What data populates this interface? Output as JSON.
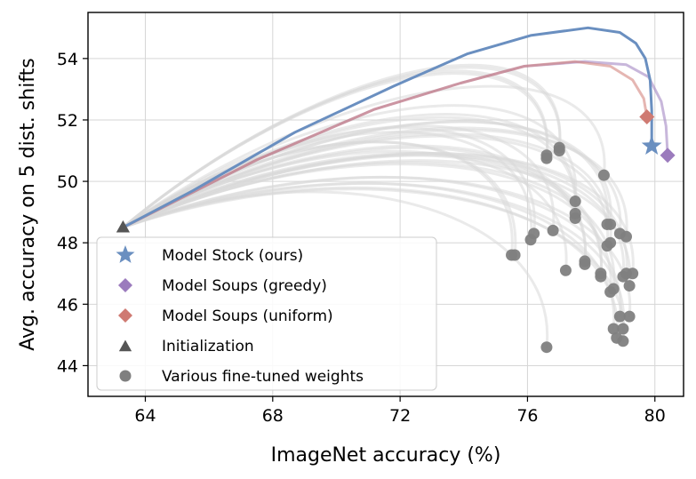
{
  "chart_data": {
    "type": "line",
    "xlabel": "ImageNet accuracy (%)",
    "ylabel": "Avg. accuracy on 5 dist. shifts",
    "xlim": [
      62.2,
      80.9
    ],
    "ylim": [
      43.0,
      55.5
    ],
    "xticks": [
      64,
      68,
      72,
      76,
      80
    ],
    "yticks": [
      44,
      46,
      48,
      50,
      52,
      54
    ],
    "grid": true,
    "legend_position": "lower-left",
    "legend": [
      {
        "label": "Model Stock (ours)",
        "marker": "star",
        "color": "#6a8fc0"
      },
      {
        "label": "Model Soups (greedy)",
        "marker": "diamond",
        "color": "#9b7bbd"
      },
      {
        "label": "Model Soups (uniform)",
        "marker": "diamond",
        "color": "#cf7a72"
      },
      {
        "label": "Initialization",
        "marker": "triangle",
        "color": "#555555"
      },
      {
        "label": "Various fine-tuned weights",
        "marker": "circle",
        "color": "#7f7f7f"
      }
    ],
    "colors": {
      "model_stock": "#6a8fc0",
      "greedy": "#9b7bbd",
      "uniform": "#cf7a72",
      "init": "#555555",
      "finetuned": "#7f7f7f",
      "interp": "#d9d9d9"
    },
    "initialization": {
      "x": 63.3,
      "y": 48.5
    },
    "model_stock_point": {
      "x": 79.9,
      "y": 51.15
    },
    "greedy_point": {
      "x": 80.4,
      "y": 50.85
    },
    "uniform_point": {
      "x": 79.75,
      "y": 52.1
    },
    "model_stock_curve": [
      [
        63.3,
        48.5
      ],
      [
        65.5,
        49.7
      ],
      [
        68.7,
        51.6
      ],
      [
        71.8,
        53.1
      ],
      [
        74.1,
        54.15
      ],
      [
        76.1,
        54.75
      ],
      [
        77.9,
        55.0
      ],
      [
        78.9,
        54.85
      ],
      [
        79.4,
        54.5
      ],
      [
        79.7,
        54.0
      ],
      [
        79.85,
        53.3
      ],
      [
        79.9,
        52.3
      ],
      [
        79.9,
        51.15
      ]
    ],
    "greedy_curve": [
      [
        63.3,
        48.5
      ],
      [
        67.5,
        50.7
      ],
      [
        71.2,
        52.35
      ],
      [
        73.9,
        53.2
      ],
      [
        75.9,
        53.75
      ],
      [
        77.8,
        53.9
      ],
      [
        79.1,
        53.8
      ],
      [
        79.8,
        53.4
      ],
      [
        80.2,
        52.6
      ],
      [
        80.35,
        51.8
      ],
      [
        80.4,
        50.85
      ]
    ],
    "uniform_curve": [
      [
        63.3,
        48.5
      ],
      [
        67.5,
        50.7
      ],
      [
        71.2,
        52.35
      ],
      [
        73.9,
        53.2
      ],
      [
        75.9,
        53.75
      ],
      [
        77.5,
        53.9
      ],
      [
        78.6,
        53.75
      ],
      [
        79.3,
        53.3
      ],
      [
        79.65,
        52.7
      ],
      [
        79.75,
        52.1
      ]
    ],
    "finetuned_points": [
      [
        76.6,
        44.6
      ],
      [
        75.5,
        47.6
      ],
      [
        75.6,
        47.6
      ],
      [
        76.1,
        48.1
      ],
      [
        76.2,
        48.3
      ],
      [
        76.8,
        48.4
      ],
      [
        76.6,
        50.75
      ],
      [
        76.6,
        50.85
      ],
      [
        77.0,
        51.0
      ],
      [
        77.0,
        51.1
      ],
      [
        77.5,
        49.35
      ],
      [
        77.5,
        48.95
      ],
      [
        77.5,
        48.8
      ],
      [
        77.2,
        47.1
      ],
      [
        77.8,
        47.3
      ],
      [
        77.8,
        47.4
      ],
      [
        78.3,
        47.0
      ],
      [
        78.3,
        46.9
      ],
      [
        78.4,
        50.2
      ],
      [
        78.5,
        48.6
      ],
      [
        78.6,
        48.6
      ],
      [
        78.5,
        47.9
      ],
      [
        78.6,
        48.0
      ],
      [
        78.9,
        48.3
      ],
      [
        79.1,
        48.2
      ],
      [
        78.6,
        46.4
      ],
      [
        78.7,
        46.5
      ],
      [
        79.0,
        46.9
      ],
      [
        79.1,
        47.0
      ],
      [
        79.2,
        46.6
      ],
      [
        79.3,
        47.0
      ],
      [
        78.9,
        45.6
      ],
      [
        79.2,
        45.6
      ],
      [
        78.7,
        45.2
      ],
      [
        79.0,
        45.2
      ],
      [
        78.8,
        44.9
      ],
      [
        79.0,
        44.8
      ]
    ]
  }
}
